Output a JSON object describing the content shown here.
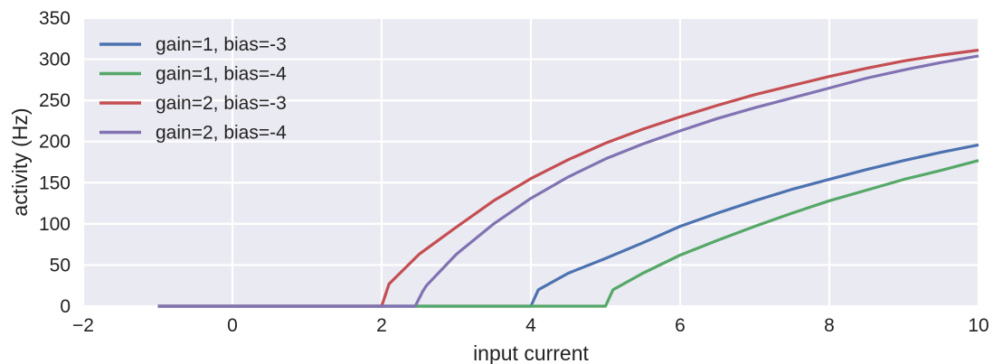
{
  "chart_data": {
    "type": "line",
    "title": "",
    "xlabel": "input current",
    "ylabel": "activity (Hz)",
    "xlim": [
      -2,
      10
    ],
    "ylim": [
      0,
      350
    ],
    "x_ticks": [
      -2,
      0,
      2,
      4,
      6,
      8,
      10
    ],
    "y_ticks": [
      0,
      50,
      100,
      150,
      200,
      250,
      300,
      350
    ],
    "x_tick_labels": [
      "−2",
      "0",
      "2",
      "4",
      "6",
      "8",
      "10"
    ],
    "y_tick_labels": [
      "0",
      "50",
      "100",
      "150",
      "200",
      "250",
      "300",
      "350"
    ],
    "grid": true,
    "legend_position": "top-left",
    "series": [
      {
        "name": "gain=1, bias=-3",
        "color": "#4c72b0",
        "x": [
          -1,
          4,
          4.1,
          4.5,
          5,
          5.5,
          6,
          6.5,
          7,
          7.5,
          8,
          8.5,
          9,
          9.5,
          10
        ],
        "y": [
          0,
          0,
          20,
          40,
          58,
          77,
          97,
          113,
          128,
          142,
          154,
          166,
          177,
          187,
          196
        ]
      },
      {
        "name": "gain=1, bias=-4",
        "color": "#55a868",
        "x": [
          -1,
          5,
          5.1,
          5.5,
          6,
          6.5,
          7,
          7.5,
          8,
          8.5,
          9,
          9.5,
          10
        ],
        "y": [
          0,
          0,
          20,
          40,
          62,
          80,
          97,
          113,
          128,
          141,
          154,
          165,
          177
        ]
      },
      {
        "name": "gain=2, bias=-3",
        "color": "#c44e52",
        "x": [
          -1,
          2,
          2.1,
          2.5,
          3,
          3.5,
          4,
          4.5,
          5,
          5.5,
          6,
          6.5,
          7,
          7.5,
          8,
          8.5,
          9,
          9.5,
          10
        ],
        "y": [
          0,
          0,
          27,
          63,
          96,
          128,
          155,
          178,
          198,
          215,
          230,
          244,
          257,
          268,
          279,
          289,
          298,
          305,
          311
        ]
      },
      {
        "name": "gain=2, bias=-4",
        "color": "#8172b2",
        "x": [
          -1,
          2.45,
          2.55,
          2.6,
          3,
          3.5,
          4,
          4.5,
          5,
          5.5,
          6,
          6.5,
          7,
          7.5,
          8,
          8.5,
          9,
          9.5,
          10
        ],
        "y": [
          0,
          0,
          18,
          25,
          63,
          100,
          131,
          157,
          179,
          197,
          213,
          228,
          241,
          253,
          265,
          277,
          287,
          296,
          304
        ]
      }
    ]
  }
}
